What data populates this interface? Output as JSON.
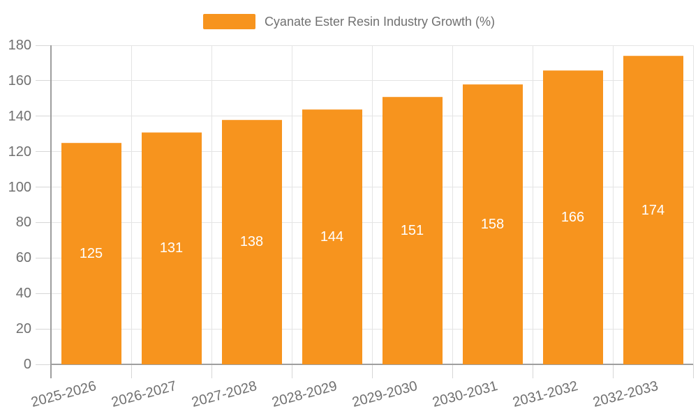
{
  "chart_data": {
    "type": "bar",
    "title": "Cyanate Ester Resin Industry Growth (%)",
    "legend": [
      "Cyanate Ester Resin Industry Growth (%)"
    ],
    "legend_position": "top-center",
    "categories": [
      "2025-2026",
      "2026-2027",
      "2027-2028",
      "2028-2029",
      "2029-2030",
      "2030-2031",
      "2031-2032",
      "2032-2033"
    ],
    "values": [
      125,
      131,
      138,
      144,
      151,
      158,
      166,
      174
    ],
    "xlabel": "",
    "ylabel": "",
    "ylim": [
      0,
      180
    ],
    "yticks": [
      0,
      20,
      40,
      60,
      80,
      100,
      120,
      140,
      160,
      180
    ],
    "grid": true,
    "bar_label_position": "inside-center"
  },
  "colors": {
    "bar": "#f7941e",
    "bar_border": "#f9a94c",
    "value_label": "#ffffff",
    "axis_line": "#9e9e9e",
    "grid_line": "#e4e4e4",
    "tick_line": "#d6d6d6",
    "text": "#707070",
    "background": "#ffffff"
  }
}
